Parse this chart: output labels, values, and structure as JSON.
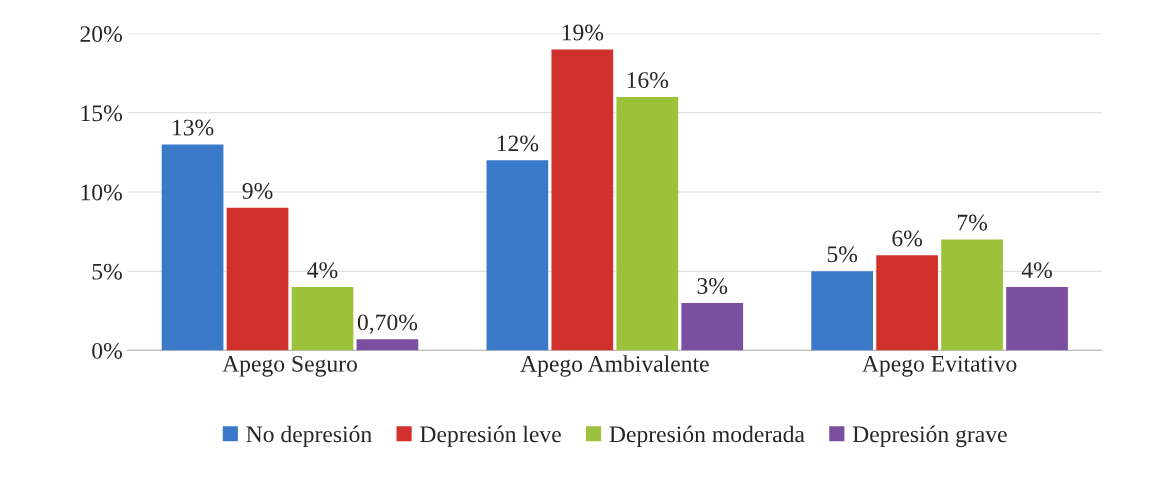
{
  "chart_data": {
    "type": "bar",
    "categories": [
      "Apego Seguro",
      "Apego Ambivalente",
      "Apego Evitativo"
    ],
    "series": [
      {
        "name": "No depresión",
        "color": "#3a78c8",
        "values": [
          13,
          12,
          5
        ],
        "value_labels": [
          "13%",
          "12%",
          "5%"
        ]
      },
      {
        "name": "Depresión leve",
        "color": "#d0312d",
        "values": [
          9,
          19,
          6
        ],
        "value_labels": [
          "9%",
          "19%",
          "6%"
        ]
      },
      {
        "name": "Depresión moderada",
        "color": "#9bc23a",
        "values": [
          4,
          16,
          7
        ],
        "value_labels": [
          "4%",
          "16%",
          "7%"
        ]
      },
      {
        "name": "Depresión grave",
        "color": "#7b4fa0",
        "values": [
          0.7,
          3,
          4
        ],
        "value_labels": [
          "0,70%",
          "3%",
          "4%"
        ]
      }
    ],
    "ylim": [
      0,
      20
    ],
    "yticks": [
      {
        "value": 0,
        "label": "0%"
      },
      {
        "value": 5,
        "label": "5%"
      },
      {
        "value": 10,
        "label": "10%"
      },
      {
        "value": 15,
        "label": "15%"
      },
      {
        "value": 20,
        "label": "20%"
      }
    ],
    "grid": "y",
    "legend": "bottom"
  }
}
